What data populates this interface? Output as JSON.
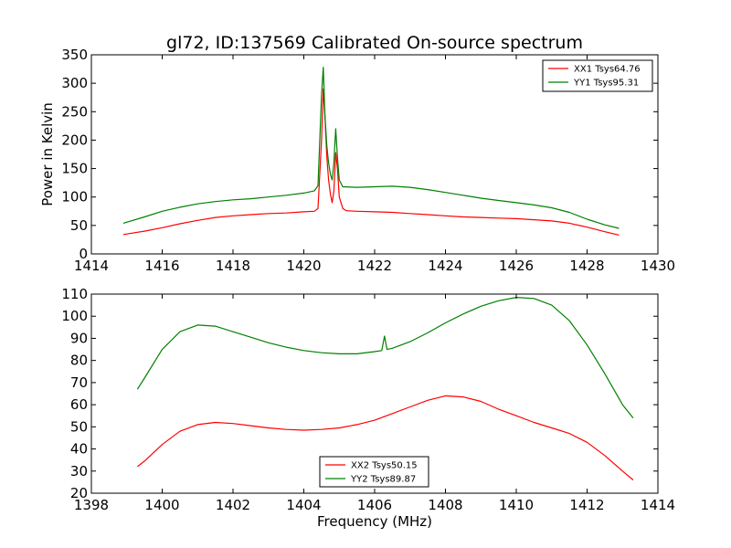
{
  "chart_data": [
    {
      "type": "line",
      "title": "gl72, ID:137569 Calibrated On-source spectrum",
      "xlabel": "",
      "ylabel": "Power in Kelvin",
      "xlim": [
        1414,
        1430
      ],
      "ylim": [
        0,
        350
      ],
      "xticks": [
        "1414",
        "1416",
        "1418",
        "1420",
        "1422",
        "1424",
        "1426",
        "1428",
        "1430"
      ],
      "yticks": [
        "0",
        "50",
        "100",
        "150",
        "200",
        "250",
        "300",
        "350"
      ],
      "legend_position": "top-right",
      "series": [
        {
          "name": "XX1 Tsys64.76",
          "color": "#ff0000",
          "points": [
            [
              1414.9,
              34
            ],
            [
              1415.5,
              40
            ],
            [
              1416,
              46
            ],
            [
              1416.5,
              53
            ],
            [
              1417,
              59
            ],
            [
              1417.5,
              64
            ],
            [
              1418,
              67
            ],
            [
              1418.5,
              69
            ],
            [
              1419,
              71
            ],
            [
              1419.5,
              72
            ],
            [
              1420,
              74
            ],
            [
              1420.3,
              75
            ],
            [
              1420.4,
              80
            ],
            [
              1420.5,
              200
            ],
            [
              1420.55,
              290
            ],
            [
              1420.6,
              240
            ],
            [
              1420.65,
              170
            ],
            [
              1420.7,
              130
            ],
            [
              1420.75,
              105
            ],
            [
              1420.8,
              90
            ],
            [
              1420.85,
              110
            ],
            [
              1420.9,
              178
            ],
            [
              1420.95,
              150
            ],
            [
              1421,
              100
            ],
            [
              1421.1,
              80
            ],
            [
              1421.2,
              76
            ],
            [
              1421.5,
              75
            ],
            [
              1422,
              74
            ],
            [
              1422.5,
              73
            ],
            [
              1423,
              71
            ],
            [
              1423.5,
              69
            ],
            [
              1424,
              67
            ],
            [
              1424.5,
              65
            ],
            [
              1425,
              64
            ],
            [
              1425.5,
              63
            ],
            [
              1426,
              62
            ],
            [
              1426.5,
              60
            ],
            [
              1427,
              58
            ],
            [
              1427.5,
              54
            ],
            [
              1428,
              47
            ],
            [
              1428.5,
              39
            ],
            [
              1428.9,
              33
            ]
          ]
        },
        {
          "name": "YY1 Tsys95.31",
          "color": "#008000",
          "points": [
            [
              1414.9,
              54
            ],
            [
              1415.5,
              65
            ],
            [
              1416,
              75
            ],
            [
              1416.5,
              82
            ],
            [
              1417,
              88
            ],
            [
              1417.5,
              92
            ],
            [
              1418,
              95
            ],
            [
              1418.5,
              97
            ],
            [
              1419,
              100
            ],
            [
              1419.5,
              103
            ],
            [
              1420,
              107
            ],
            [
              1420.3,
              111
            ],
            [
              1420.4,
              120
            ],
            [
              1420.5,
              280
            ],
            [
              1420.55,
              328
            ],
            [
              1420.6,
              240
            ],
            [
              1420.65,
              190
            ],
            [
              1420.7,
              160
            ],
            [
              1420.75,
              140
            ],
            [
              1420.8,
              130
            ],
            [
              1420.85,
              160
            ],
            [
              1420.9,
              220
            ],
            [
              1420.95,
              170
            ],
            [
              1421,
              130
            ],
            [
              1421.1,
              118
            ],
            [
              1421.5,
              117
            ],
            [
              1422,
              118
            ],
            [
              1422.5,
              119
            ],
            [
              1423,
              117
            ],
            [
              1423.5,
              113
            ],
            [
              1424,
              108
            ],
            [
              1424.5,
              103
            ],
            [
              1425,
              98
            ],
            [
              1425.5,
              94
            ],
            [
              1426,
              90
            ],
            [
              1426.5,
              86
            ],
            [
              1427,
              81
            ],
            [
              1427.5,
              73
            ],
            [
              1428,
              61
            ],
            [
              1428.5,
              51
            ],
            [
              1428.9,
              45
            ]
          ]
        }
      ]
    },
    {
      "type": "line",
      "title": "",
      "xlabel": "Frequency (MHz)",
      "ylabel": "",
      "xlim": [
        1398,
        1414
      ],
      "ylim": [
        20,
        110
      ],
      "xticks": [
        "1398",
        "1400",
        "1402",
        "1404",
        "1406",
        "1408",
        "1410",
        "1412",
        "1414"
      ],
      "yticks": [
        "20",
        "30",
        "40",
        "50",
        "60",
        "70",
        "80",
        "90",
        "100",
        "110"
      ],
      "legend_position": "bottom-center",
      "series": [
        {
          "name": "XX2 Tsys50.15",
          "color": "#ff0000",
          "points": [
            [
              1399.3,
              32
            ],
            [
              1399.5,
              34.5
            ],
            [
              1400,
              42
            ],
            [
              1400.5,
              48
            ],
            [
              1401,
              51
            ],
            [
              1401.5,
              52
            ],
            [
              1402,
              51.5
            ],
            [
              1402.5,
              50.5
            ],
            [
              1403,
              49.5
            ],
            [
              1403.5,
              48.8
            ],
            [
              1404,
              48.5
            ],
            [
              1404.5,
              48.8
            ],
            [
              1405,
              49.5
            ],
            [
              1405.5,
              51
            ],
            [
              1406,
              53
            ],
            [
              1406.5,
              56
            ],
            [
              1407,
              59
            ],
            [
              1407.5,
              62
            ],
            [
              1408,
              64
            ],
            [
              1408.5,
              63.5
            ],
            [
              1409,
              61.5
            ],
            [
              1409.5,
              58
            ],
            [
              1410,
              55
            ],
            [
              1410.5,
              52
            ],
            [
              1411,
              49.5
            ],
            [
              1411.5,
              47
            ],
            [
              1412,
              43
            ],
            [
              1412.5,
              37
            ],
            [
              1413,
              30
            ],
            [
              1413.3,
              26
            ]
          ]
        },
        {
          "name": "YY2 Tsys89.87",
          "color": "#008000",
          "points": [
            [
              1399.3,
              67
            ],
            [
              1399.5,
              72
            ],
            [
              1400,
              85
            ],
            [
              1400.5,
              93
            ],
            [
              1401,
              96
            ],
            [
              1401.5,
              95.5
            ],
            [
              1402,
              93
            ],
            [
              1402.5,
              90.5
            ],
            [
              1403,
              88
            ],
            [
              1403.5,
              86
            ],
            [
              1404,
              84.5
            ],
            [
              1404.5,
              83.5
            ],
            [
              1405,
              83
            ],
            [
              1405.5,
              83
            ],
            [
              1406,
              84
            ],
            [
              1406.2,
              84.5
            ],
            [
              1406.28,
              91
            ],
            [
              1406.35,
              85
            ],
            [
              1406.5,
              85.5
            ],
            [
              1407,
              88.5
            ],
            [
              1407.5,
              92.5
            ],
            [
              1408,
              97
            ],
            [
              1408.5,
              101
            ],
            [
              1409,
              104.5
            ],
            [
              1409.5,
              107
            ],
            [
              1410,
              108.5
            ],
            [
              1410.5,
              108
            ],
            [
              1411,
              105
            ],
            [
              1411.5,
              98
            ],
            [
              1412,
              87
            ],
            [
              1412.5,
              74
            ],
            [
              1413,
              60
            ],
            [
              1413.3,
              54
            ]
          ]
        }
      ]
    }
  ]
}
